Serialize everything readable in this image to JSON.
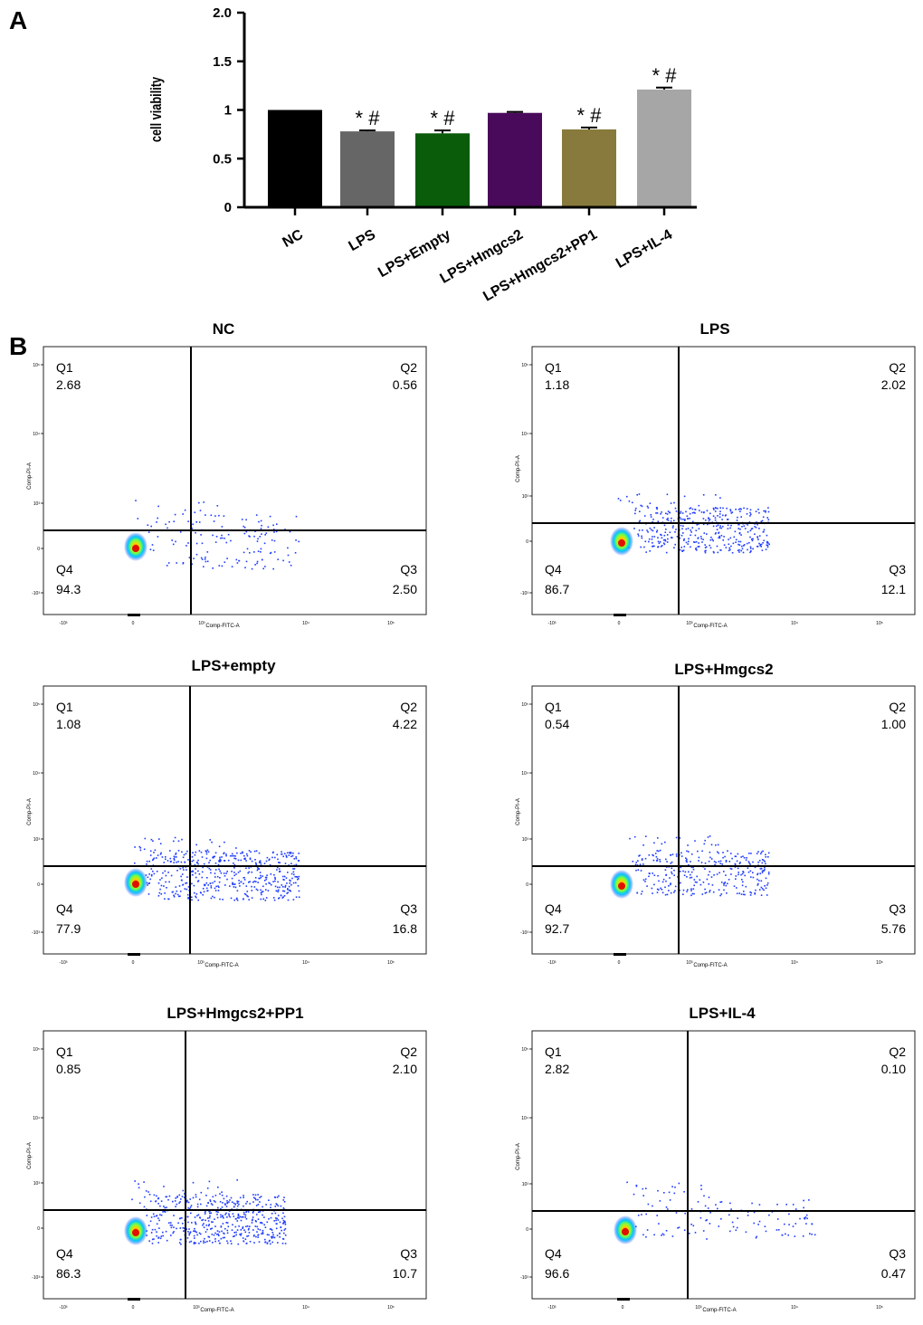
{
  "panel_labels": {
    "a": "A",
    "b": "B"
  },
  "chart_data": [
    {
      "type": "bar",
      "title": "",
      "xlabel": "",
      "ylabel": "cell viability",
      "ylim": [
        0,
        2.0
      ],
      "yticks": [
        {
          "value": 0,
          "label": "0"
        },
        {
          "value": 0.5,
          "label": "0.5"
        },
        {
          "value": 1,
          "label": "1"
        },
        {
          "value": 1.5,
          "label": "1.5"
        },
        {
          "value": 2,
          "label": "2.0"
        }
      ],
      "categories": [
        "NC",
        "LPS",
        "LPS+Empty",
        "LPS+Hmgcs2",
        "LPS+Hmgcs2+PP1",
        "LPS+IL-4"
      ],
      "values": [
        1.0,
        0.78,
        0.76,
        0.97,
        0.8,
        1.21
      ],
      "errors": [
        0.0,
        0.01,
        0.03,
        0.01,
        0.02,
        0.02
      ],
      "annotations": [
        "",
        "* #",
        "* #",
        "",
        "* #",
        "* #"
      ],
      "colors": [
        "#000000",
        "#666666",
        "#0a5c0a",
        "#4a0a5c",
        "#877a3c",
        "#a6a6a6"
      ]
    },
    {
      "type": "scatter",
      "subtype": "flow-cytometry-quadrant",
      "xlabel": "Comp-FITC-A",
      "ylabel": "Comp-PI-A",
      "x_tick_labels": [
        "-10³",
        "0",
        "10³",
        "10⁴",
        "10⁵"
      ],
      "y_tick_labels": [
        "-10³",
        "0",
        "10³",
        "10⁴",
        "10⁵"
      ],
      "quadrant_names": [
        "Q1",
        "Q2",
        "Q3",
        "Q4"
      ],
      "panels": [
        {
          "title": "NC",
          "q1": "2.68",
          "q2": "0.56",
          "q3": "2.50",
          "q4": "94.3"
        },
        {
          "title": "LPS",
          "q1": "1.18",
          "q2": "2.02",
          "q3": "12.1",
          "q4": "86.7"
        },
        {
          "title": "LPS+empty",
          "q1": "1.08",
          "q2": "4.22",
          "q3": "16.8",
          "q4": "77.9"
        },
        {
          "title": "LPS+Hmgcs2",
          "q1": "0.54",
          "q2": "1.00",
          "q3": "5.76",
          "q4": "92.7"
        },
        {
          "title": "LPS+Hmgcs2+PP1",
          "q1": "0.85",
          "q2": "2.10",
          "q3": "10.7",
          "q4": "86.3"
        },
        {
          "title": "LPS+IL-4",
          "q1": "2.82",
          "q2": "0.10",
          "q3": "0.47",
          "q4": "96.6"
        }
      ]
    }
  ]
}
